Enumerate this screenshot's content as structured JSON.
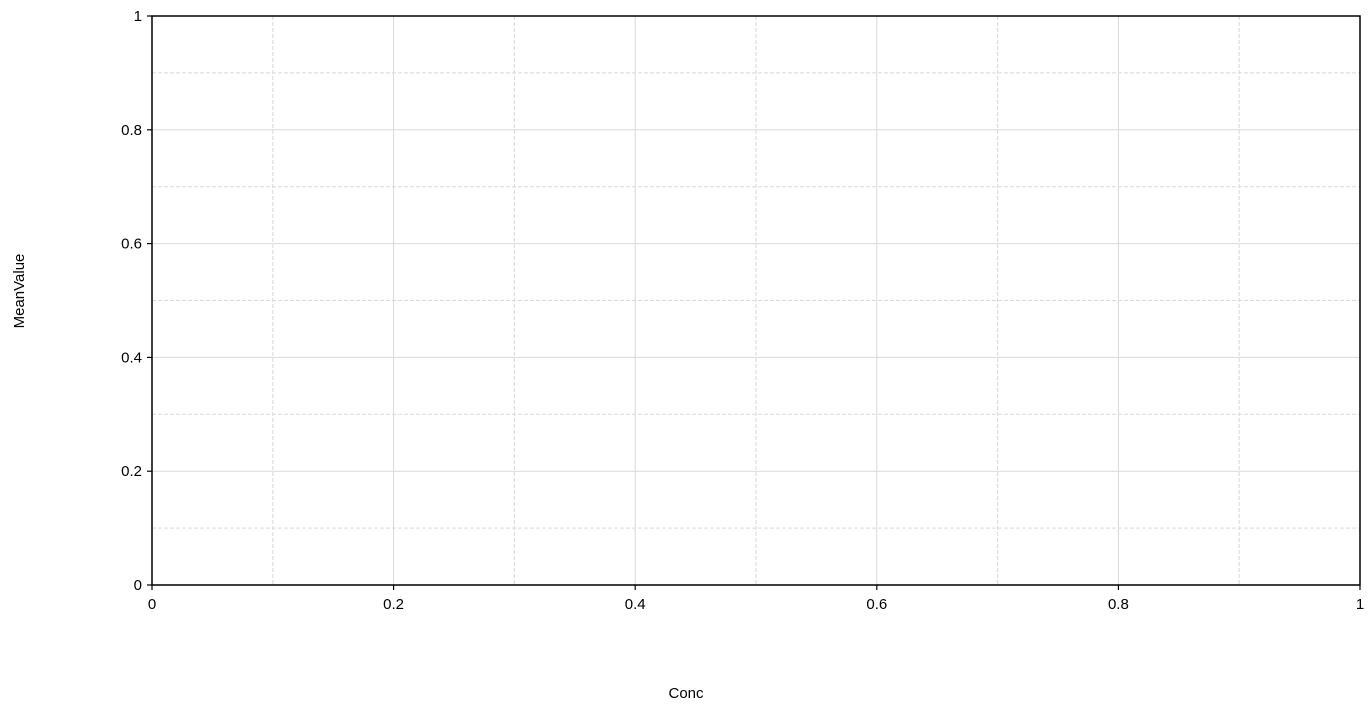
{
  "chart_data": {
    "type": "scatter",
    "title": "",
    "xlabel": "Conc",
    "ylabel": "MeanValue",
    "xlim": [
      0,
      1
    ],
    "ylim": [
      0,
      1
    ],
    "x_ticks": [
      0,
      0.2,
      0.4,
      0.6,
      0.8,
      1
    ],
    "y_ticks": [
      0,
      0.2,
      0.4,
      0.6,
      0.8,
      1
    ],
    "x_tick_labels": [
      "0",
      "0.2",
      "0.4",
      "0.6",
      "0.8",
      "1"
    ],
    "y_tick_labels": [
      "0",
      "0.2",
      "0.4",
      "0.6",
      "0.8",
      "1"
    ],
    "x_minor_ticks": [
      0.1,
      0.3,
      0.5,
      0.7,
      0.9
    ],
    "y_minor_ticks": [
      0.1,
      0.3,
      0.5,
      0.7,
      0.9
    ],
    "grid": true,
    "series": []
  }
}
